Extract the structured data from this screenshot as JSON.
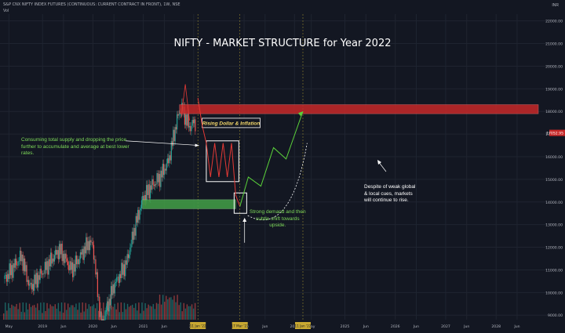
{
  "header": {
    "symbol_line": "S&P CNX NIFTY INDEX FUTURES (CONTINUOUS: CURRENT CONTRACT IN FRONT), 1W, NSE",
    "indicator": "Vol",
    "currency": "INR"
  },
  "title": "NIFTY - MARKET STRUCTURE for Year 2022",
  "annotations": {
    "left_note": [
      "Consuming total supply and dropping the price",
      "further to accumulate and average at best lower",
      "rates."
    ],
    "box_label": "Rising Dollar & Inflation",
    "demand_note": [
      "Strong demand and then",
      "subtle shift towards",
      "upside."
    ],
    "right_note": [
      "Despite of weak global",
      "& local cues, markets",
      "will continue to rise."
    ]
  },
  "chart_data": {
    "type": "line",
    "title": "NIFTY - MARKET STRUCTURE for Year 2022",
    "price_axis": {
      "ticks": [
        9000,
        10000,
        11000,
        12000,
        13000,
        14000,
        15000,
        16000,
        17000,
        18000,
        19000,
        20000,
        21000,
        22000
      ],
      "tick_labels": [
        "9000.00",
        "10000.00",
        "11000.00",
        "12000.00",
        "13000.00",
        "14000.00",
        "15000.00",
        "16000.00",
        "17000.00",
        "18000.00",
        "19000.00",
        "20000.00",
        "21000.00",
        "22000.00"
      ],
      "range": [
        8800,
        22300
      ],
      "last_price": 17052.95,
      "last_price_label": "17052.95"
    },
    "time_axis": {
      "labels": [
        "May",
        "2019",
        "Jun",
        "2020",
        "Jun",
        "2021",
        "Jun",
        "2022",
        "17 Mar '22",
        "2023",
        "Jun",
        "2024",
        "May",
        "2025",
        "Jun",
        "2026",
        "Jun",
        "2027",
        "Jun",
        "2028",
        "Jun"
      ],
      "highlighted": [
        "17 Mar '22",
        "11 Jan '22",
        "11 Jan '22"
      ],
      "axis_ticks": [
        "May",
        "2019",
        "Jun",
        "2020",
        "Jun",
        "2021",
        "Jun",
        "2022",
        "2023",
        "Jun",
        "2024",
        "May",
        "2025",
        "Jun",
        "2026",
        "Jun",
        "2027",
        "Jun",
        "2028",
        "Jun"
      ]
    },
    "zones": {
      "supply": [
        17900,
        18300
      ],
      "demand": [
        13700,
        14100
      ],
      "consolidation": [
        14900,
        16700
      ]
    },
    "projection": [
      {
        "t": "2022-02",
        "price": 18600
      },
      {
        "t": "2022-03",
        "price": 17400
      },
      {
        "t": "2022-04",
        "price": 16600
      },
      {
        "t": "2022-05",
        "price": 15100
      },
      {
        "t": "2022-06",
        "price": 16600
      },
      {
        "t": "2022-07",
        "price": 15100
      },
      {
        "t": "2022-08",
        "price": 16600
      },
      {
        "t": "2022-09",
        "price": 15100
      },
      {
        "t": "2022-10",
        "price": 16600
      },
      {
        "t": "2022-11",
        "price": 14300
      },
      {
        "t": "2022-12",
        "price": 13800
      },
      {
        "t": "2023-02",
        "price": 15100
      },
      {
        "t": "2023-05",
        "price": 14700
      },
      {
        "t": "2023-08",
        "price": 16400
      },
      {
        "t": "2023-11",
        "price": 15900
      },
      {
        "t": "2024-03",
        "price": 18000
      }
    ],
    "history_close": [
      {
        "t": "2018-04",
        "price": 10600
      },
      {
        "t": "2018-08",
        "price": 11600
      },
      {
        "t": "2018-10",
        "price": 10200
      },
      {
        "t": "2019-01",
        "price": 10900
      },
      {
        "t": "2019-05",
        "price": 11900
      },
      {
        "t": "2019-08",
        "price": 11000
      },
      {
        "t": "2019-12",
        "price": 12200
      },
      {
        "t": "2020-01",
        "price": 12100
      },
      {
        "t": "2020-03",
        "price": 8500
      },
      {
        "t": "2020-06",
        "price": 10300
      },
      {
        "t": "2020-09",
        "price": 11300
      },
      {
        "t": "2020-11",
        "price": 12900
      },
      {
        "t": "2021-01",
        "price": 14200
      },
      {
        "t": "2021-03",
        "price": 14700
      },
      {
        "t": "2021-05",
        "price": 15100
      },
      {
        "t": "2021-07",
        "price": 15800
      },
      {
        "t": "2021-09",
        "price": 17600
      },
      {
        "t": "2021-10",
        "price": 18200
      },
      {
        "t": "2021-12",
        "price": 17300
      },
      {
        "t": "2022-01",
        "price": 17500
      }
    ]
  },
  "colors": {
    "background": "#131722",
    "supply_zone": "#c62828",
    "demand_zone": "#43a047",
    "green_line": "#5ad13a",
    "red_line": "#e53935",
    "up_candle": "#26a69a",
    "down_candle": "#ef5350",
    "grid": "#1f2430",
    "vertical_marker": "#c8b232",
    "note_green": "#7fdc5a"
  }
}
